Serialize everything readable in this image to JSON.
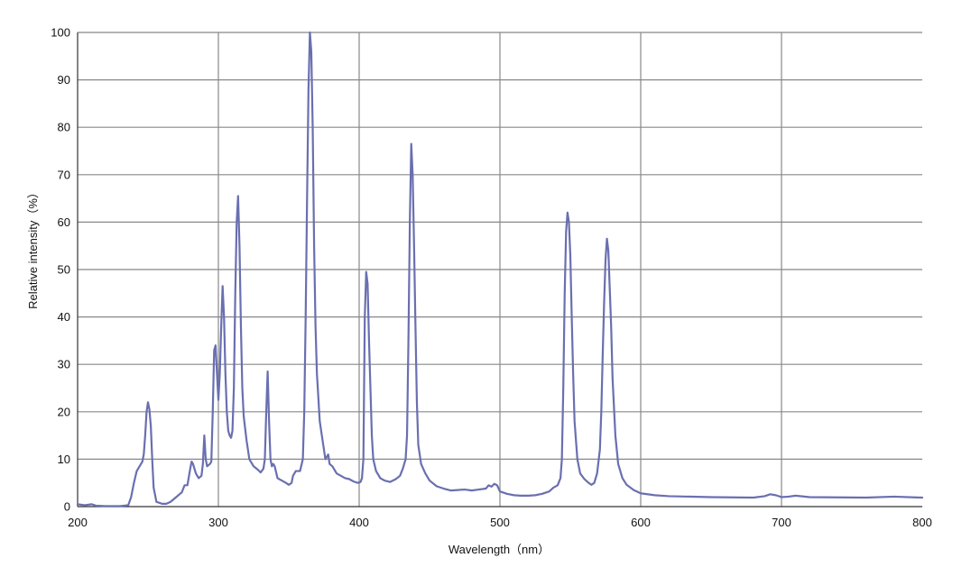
{
  "chart_data": {
    "type": "line",
    "xlabel": "Wavelength（nm）",
    "ylabel": "Relative intensity（%）",
    "xlim": [
      200,
      800
    ],
    "ylim": [
      0,
      100
    ],
    "x_ticks": [
      200,
      300,
      400,
      500,
      600,
      700,
      800
    ],
    "y_ticks": [
      0,
      10,
      20,
      30,
      40,
      50,
      60,
      70,
      80,
      90,
      100
    ],
    "grid": true,
    "line_color": "#6a6fb0",
    "grid_color": "#888888",
    "series": [
      {
        "points": [
          [
            200,
            0.5
          ],
          [
            205,
            0.3
          ],
          [
            210,
            0.5
          ],
          [
            213,
            0.2
          ],
          [
            220,
            0.1
          ],
          [
            230,
            0.1
          ],
          [
            236,
            0.3
          ],
          [
            238,
            2
          ],
          [
            240,
            5
          ],
          [
            242,
            7.5
          ],
          [
            244,
            8.5
          ],
          [
            246,
            9.5
          ],
          [
            247,
            11
          ],
          [
            248,
            15
          ],
          [
            249,
            20
          ],
          [
            250,
            22
          ],
          [
            251,
            20.5
          ],
          [
            252,
            17
          ],
          [
            253,
            10
          ],
          [
            254,
            4
          ],
          [
            256,
            1
          ],
          [
            260,
            0.6
          ],
          [
            263,
            0.6
          ],
          [
            266,
            1
          ],
          [
            270,
            2
          ],
          [
            274,
            3
          ],
          [
            276,
            4.5
          ],
          [
            278,
            4.5
          ],
          [
            280,
            8
          ],
          [
            281,
            9.5
          ],
          [
            282,
            9
          ],
          [
            284,
            7
          ],
          [
            286,
            6
          ],
          [
            288,
            6.5
          ],
          [
            289,
            9
          ],
          [
            290,
            15
          ],
          [
            291,
            10
          ],
          [
            292,
            8.5
          ],
          [
            294,
            9
          ],
          [
            295,
            9.5
          ],
          [
            296,
            20
          ],
          [
            297,
            33
          ],
          [
            298,
            34
          ],
          [
            299,
            28
          ],
          [
            300,
            22.5
          ],
          [
            301,
            28
          ],
          [
            302,
            38
          ],
          [
            303,
            46.5
          ],
          [
            304,
            40
          ],
          [
            305,
            28
          ],
          [
            306,
            20
          ],
          [
            307,
            16
          ],
          [
            308,
            15
          ],
          [
            309,
            14.5
          ],
          [
            310,
            16
          ],
          [
            311,
            25
          ],
          [
            312,
            45
          ],
          [
            313,
            60
          ],
          [
            314,
            65.5
          ],
          [
            315,
            55
          ],
          [
            316,
            38
          ],
          [
            317,
            25
          ],
          [
            318,
            19
          ],
          [
            320,
            14
          ],
          [
            322,
            10
          ],
          [
            325,
            8.5
          ],
          [
            328,
            7.8
          ],
          [
            330,
            7.2
          ],
          [
            332,
            8
          ],
          [
            333,
            10
          ],
          [
            334,
            20
          ],
          [
            335,
            28.5
          ],
          [
            336,
            18
          ],
          [
            337,
            10
          ],
          [
            338,
            8.5
          ],
          [
            339,
            9
          ],
          [
            340,
            8.5
          ],
          [
            342,
            6
          ],
          [
            345,
            5.5
          ],
          [
            348,
            5
          ],
          [
            350,
            4.6
          ],
          [
            352,
            5
          ],
          [
            353,
            6.5
          ],
          [
            355,
            7.5
          ],
          [
            358,
            7.5
          ],
          [
            360,
            10
          ],
          [
            361,
            20
          ],
          [
            362,
            40
          ],
          [
            363,
            65
          ],
          [
            364,
            88
          ],
          [
            365,
            100
          ],
          [
            366,
            96
          ],
          [
            367,
            80
          ],
          [
            368,
            55
          ],
          [
            369,
            38
          ],
          [
            370,
            28
          ],
          [
            372,
            18
          ],
          [
            374,
            14
          ],
          [
            376,
            10
          ],
          [
            377,
            10.5
          ],
          [
            378,
            11
          ],
          [
            379,
            9
          ],
          [
            381,
            8.5
          ],
          [
            384,
            7
          ],
          [
            387,
            6.5
          ],
          [
            390,
            6
          ],
          [
            393,
            5.8
          ],
          [
            396,
            5.3
          ],
          [
            399,
            5
          ],
          [
            401,
            5.2
          ],
          [
            402,
            6
          ],
          [
            403,
            10
          ],
          [
            404,
            40
          ],
          [
            405,
            49.5
          ],
          [
            406,
            47
          ],
          [
            407,
            35
          ],
          [
            408,
            25
          ],
          [
            409,
            15
          ],
          [
            410,
            10
          ],
          [
            412,
            7.5
          ],
          [
            415,
            6
          ],
          [
            418,
            5.5
          ],
          [
            422,
            5.2
          ],
          [
            426,
            5.8
          ],
          [
            429,
            6.5
          ],
          [
            431,
            8
          ],
          [
            433,
            10
          ],
          [
            434,
            15
          ],
          [
            435,
            35
          ],
          [
            436,
            60
          ],
          [
            437,
            76.5
          ],
          [
            438,
            70
          ],
          [
            439,
            55
          ],
          [
            440,
            38
          ],
          [
            441,
            22
          ],
          [
            442,
            13
          ],
          [
            444,
            9
          ],
          [
            447,
            7
          ],
          [
            450,
            5.5
          ],
          [
            455,
            4.3
          ],
          [
            460,
            3.8
          ],
          [
            465,
            3.4
          ],
          [
            470,
            3.5
          ],
          [
            475,
            3.6
          ],
          [
            480,
            3.4
          ],
          [
            485,
            3.6
          ],
          [
            490,
            3.8
          ],
          [
            492,
            4.5
          ],
          [
            494,
            4.2
          ],
          [
            496,
            4.8
          ],
          [
            498,
            4.5
          ],
          [
            500,
            3.2
          ],
          [
            505,
            2.7
          ],
          [
            510,
            2.4
          ],
          [
            515,
            2.3
          ],
          [
            520,
            2.3
          ],
          [
            525,
            2.4
          ],
          [
            530,
            2.7
          ],
          [
            535,
            3.2
          ],
          [
            538,
            4
          ],
          [
            541,
            4.5
          ],
          [
            543,
            6
          ],
          [
            544,
            10
          ],
          [
            545,
            25
          ],
          [
            546,
            45
          ],
          [
            547,
            58
          ],
          [
            548,
            62
          ],
          [
            549,
            60
          ],
          [
            550,
            53
          ],
          [
            551,
            40
          ],
          [
            552,
            28
          ],
          [
            553,
            18
          ],
          [
            555,
            10
          ],
          [
            557,
            7
          ],
          [
            560,
            5.8
          ],
          [
            563,
            5
          ],
          [
            565,
            4.6
          ],
          [
            567,
            5
          ],
          [
            569,
            7
          ],
          [
            571,
            12
          ],
          [
            572,
            20
          ],
          [
            573,
            32
          ],
          [
            574,
            43
          ],
          [
            575,
            52
          ],
          [
            576,
            56.5
          ],
          [
            577,
            54
          ],
          [
            578,
            46
          ],
          [
            579,
            38
          ],
          [
            580,
            27
          ],
          [
            582,
            15
          ],
          [
            584,
            9
          ],
          [
            587,
            6
          ],
          [
            590,
            4.6
          ],
          [
            595,
            3.5
          ],
          [
            600,
            2.8
          ],
          [
            610,
            2.4
          ],
          [
            620,
            2.2
          ],
          [
            650,
            2
          ],
          [
            680,
            1.9
          ],
          [
            688,
            2.2
          ],
          [
            692,
            2.6
          ],
          [
            696,
            2.4
          ],
          [
            700,
            2
          ],
          [
            705,
            2.1
          ],
          [
            710,
            2.3
          ],
          [
            720,
            2
          ],
          [
            760,
            1.9
          ],
          [
            780,
            2.1
          ],
          [
            800,
            1.9
          ]
        ]
      }
    ]
  }
}
